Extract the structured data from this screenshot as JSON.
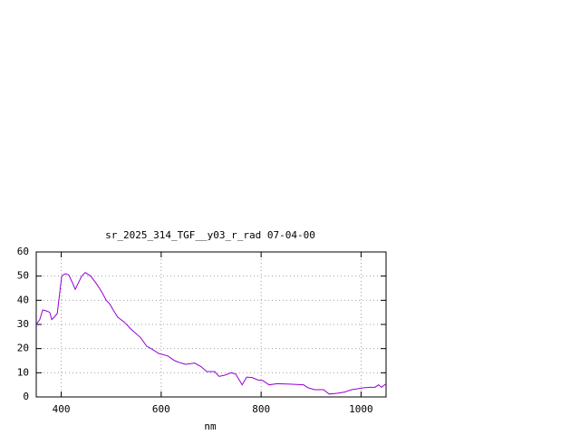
{
  "chart_data": {
    "type": "line",
    "title": "sr_2025_314_TGF__y03_r_rad 07-04-00",
    "x_label": "nm",
    "x": [
      350,
      357,
      363,
      372,
      377,
      381,
      386,
      392,
      401,
      408,
      415,
      423,
      428,
      435,
      441,
      448,
      459,
      470,
      481,
      490,
      497,
      504,
      513,
      526,
      540,
      559,
      571,
      580,
      595,
      613,
      627,
      640,
      649,
      667,
      680,
      691,
      707,
      716,
      727,
      740,
      749,
      762,
      771,
      782,
      794,
      803,
      816,
      832,
      858,
      885,
      894,
      907,
      925,
      936,
      952,
      967,
      981,
      994,
      1006,
      1017,
      1028,
      1035,
      1041,
      1050
    ],
    "series": [
      {
        "color": "#9400d3",
        "values": [
          30,
          32,
          36,
          35.5,
          35,
          32,
          33,
          34.5,
          50,
          51,
          50.5,
          47,
          44.5,
          47.5,
          50,
          51.5,
          50,
          47,
          43.5,
          40,
          38.5,
          36,
          33,
          31,
          28,
          24.5,
          21,
          20,
          18,
          17,
          15,
          14,
          13.5,
          14,
          12.5,
          10.5,
          10.5,
          8.5,
          9,
          10,
          9.5,
          5,
          8.2,
          8,
          7,
          6.8,
          5,
          5.5,
          5.3,
          5,
          3.8,
          3,
          3,
          1.2,
          1.5,
          2,
          3,
          3.4,
          3.8,
          4,
          4,
          5,
          4,
          5.5
        ]
      }
    ],
    "xlim": [
      350,
      1050
    ],
    "xticks": [
      400,
      600,
      800,
      1000
    ],
    "ylim": [
      0,
      60
    ],
    "yticks": [
      0,
      10,
      20,
      30,
      40,
      50,
      60
    ],
    "grid": true
  }
}
